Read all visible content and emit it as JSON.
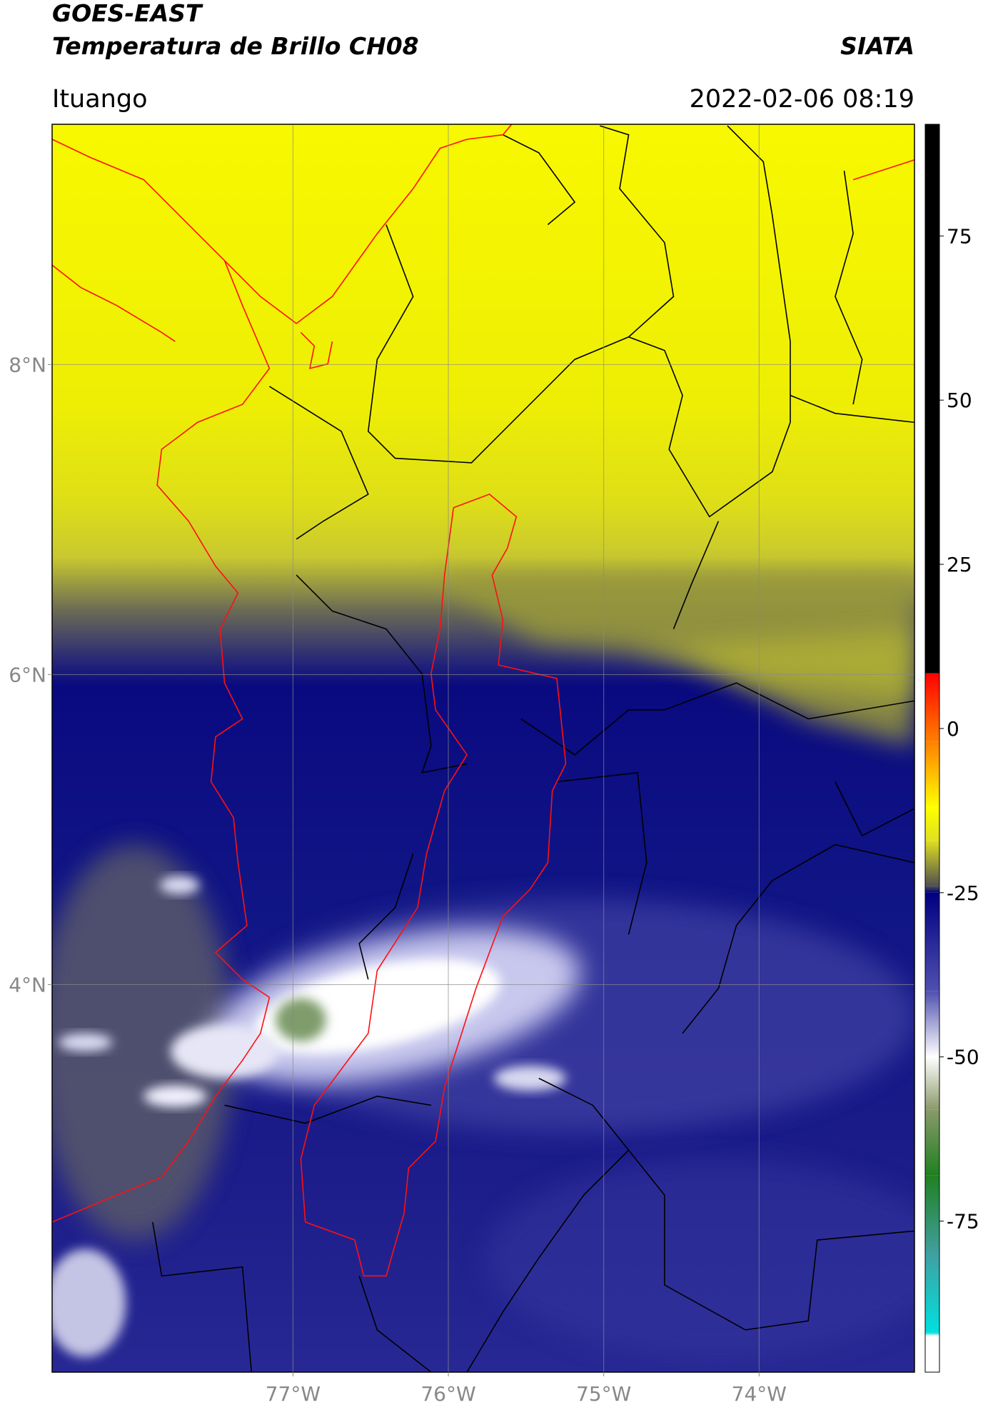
{
  "header": {
    "title": "GOES-EAST",
    "subtitle": "Temperatura de Brillo CH08",
    "source": "SIATA",
    "region": "Ituango",
    "datetime": "2022-02-06 08:19"
  },
  "map": {
    "xlim": [
      -78.55,
      -73.0
    ],
    "ylim": [
      1.5,
      9.55
    ],
    "xticks": [
      {
        "value": -77,
        "label": "77°W"
      },
      {
        "value": -76,
        "label": "76°W"
      },
      {
        "value": -75,
        "label": "75°W"
      },
      {
        "value": -74,
        "label": "74°W"
      }
    ],
    "yticks": [
      {
        "value": 4,
        "label": "4°N"
      },
      {
        "value": 6,
        "label": "6°N"
      },
      {
        "value": 8,
        "label": "8°N"
      }
    ],
    "grid": true
  },
  "colorbar": {
    "lim": [
      -98,
      92
    ],
    "ticks": [
      -75,
      -50,
      -25,
      0,
      25,
      50,
      75
    ],
    "stops": [
      [
        92,
        "#000000"
      ],
      [
        8.4,
        "#000000"
      ],
      [
        8.4,
        "#ff0000"
      ],
      [
        -2,
        "#ff8000"
      ],
      [
        -12,
        "#ffff00"
      ],
      [
        -17,
        "#e0e020"
      ],
      [
        -24,
        "#505050"
      ],
      [
        -25,
        "#000080"
      ],
      [
        -40,
        "#5050b0"
      ],
      [
        -50,
        "#ffffff"
      ],
      [
        -58,
        "#8a9a6a"
      ],
      [
        -68,
        "#208020"
      ],
      [
        -80,
        "#40a0a0"
      ],
      [
        -92,
        "#00e0e0"
      ],
      [
        -92.5,
        "#ffffff"
      ],
      [
        -98,
        "#ffffff"
      ]
    ]
  }
}
